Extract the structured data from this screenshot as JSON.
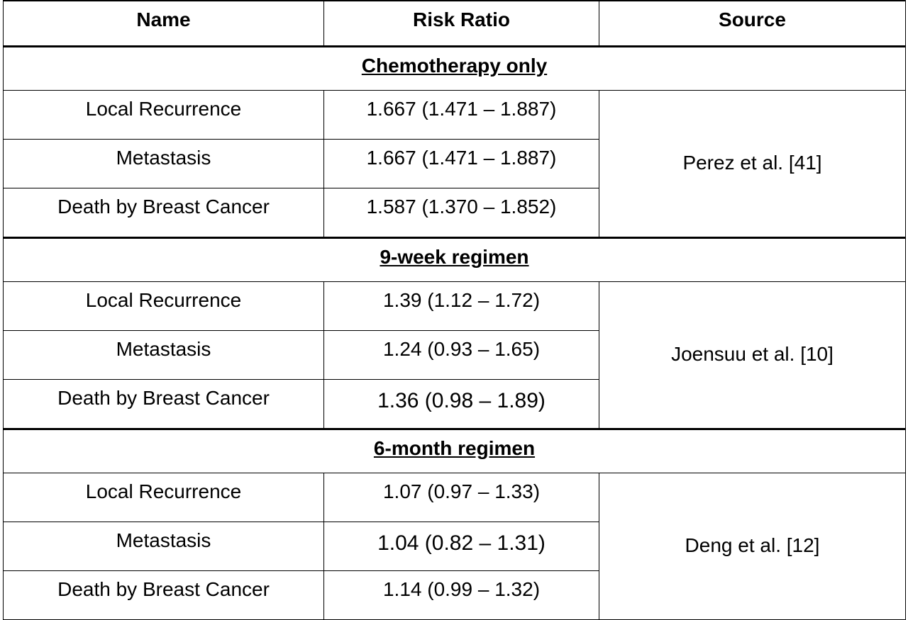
{
  "header": {
    "name": "Name",
    "risk_ratio": "Risk Ratio",
    "source": "Source"
  },
  "sections": [
    {
      "title": "Chemotherapy only",
      "source": "Perez et al. [41]",
      "rows": [
        {
          "name": "Local Recurrence",
          "value": "1.667 (1.471 – 1.887)"
        },
        {
          "name": "Metastasis",
          "value": "1.667 (1.471 – 1.887)"
        },
        {
          "name": "Death by Breast Cancer",
          "value": "1.587 (1.370 – 1.852)"
        }
      ]
    },
    {
      "title": "9-week regimen",
      "source": "Joensuu et al. [10]",
      "rows": [
        {
          "name": "Local Recurrence",
          "value": "1.39 (1.12 – 1.72)"
        },
        {
          "name": "Metastasis",
          "value": "1.24 (0.93 – 1.65)"
        },
        {
          "name": "Death by Breast Cancer",
          "value": "1.36 (0.98 – 1.89)"
        }
      ]
    },
    {
      "title": "6-month regimen",
      "source": "Deng et al. [12]",
      "rows": [
        {
          "name": "Local Recurrence",
          "value": "1.07 (0.97 – 1.33)"
        },
        {
          "name": "Metastasis",
          "value": "1.04 (0.82 – 1.31)"
        },
        {
          "name": "Death by Breast Cancer",
          "value": "1.14 (0.99 – 1.32)"
        }
      ]
    }
  ]
}
